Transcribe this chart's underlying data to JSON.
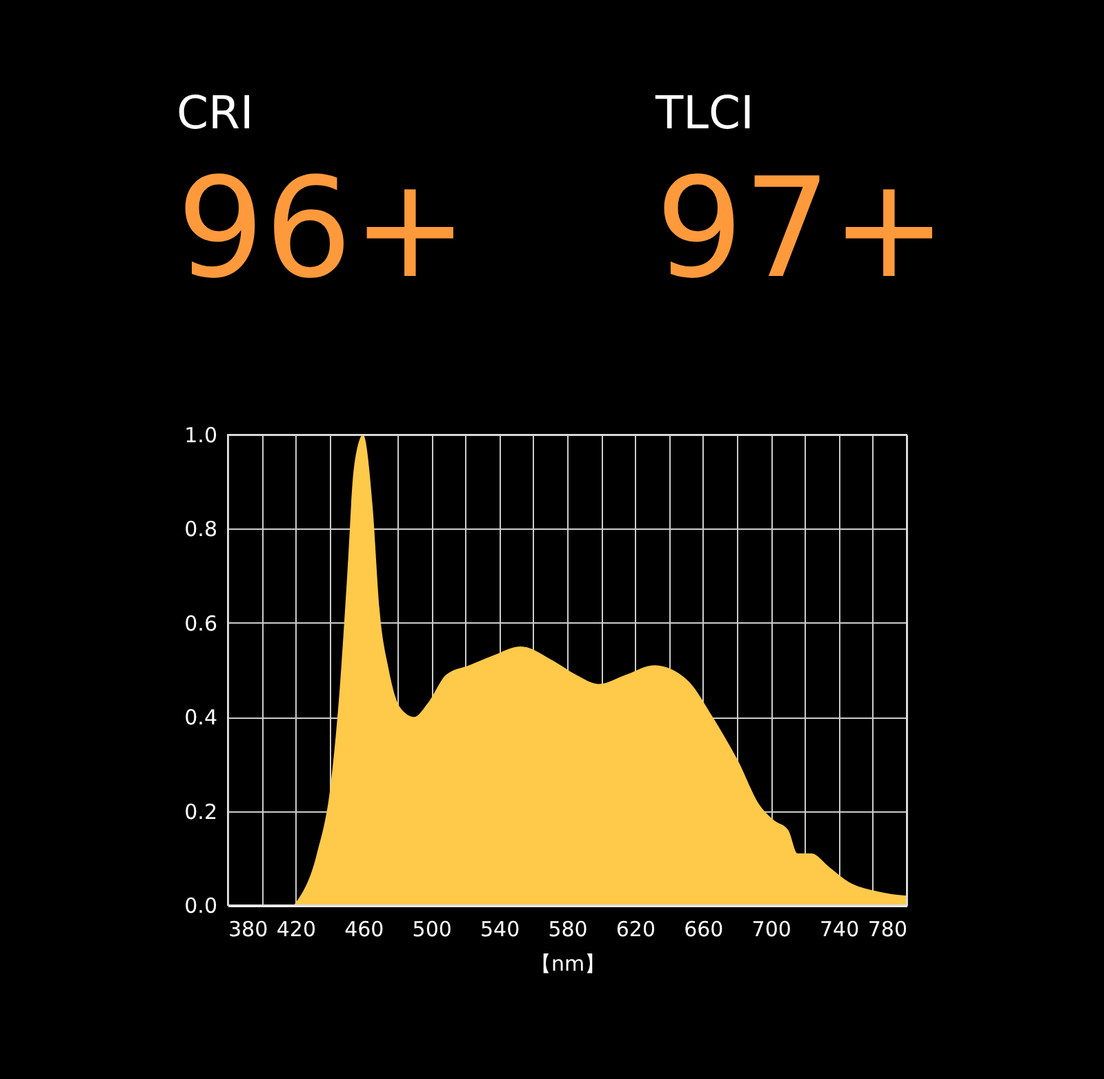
{
  "chart_data": {
    "type": "area",
    "xlabel": "【nm】",
    "annotations": [
      "CRI",
      "96+",
      "TLCI",
      "97+"
    ],
    "x": [
      419,
      432.6,
      440.8,
      446,
      450.4,
      454.4,
      459.8,
      465.3,
      469.4,
      474.9,
      481.6,
      489.8,
      498,
      508.8,
      522.4,
      536,
      552.4,
      571.4,
      585,
      598.6,
      614.9,
      631.3,
      642.2,
      653,
      664,
      680.2,
      693.9,
      702,
      710.2,
      715.7,
      723.8,
      734.7,
      745.6,
      761.9,
      780
    ],
    "series": [
      {
        "color": "#ffc94a",
        "values": [
          0,
          0.11,
          0.26,
          0.46,
          0.7,
          0.93,
          1.0,
          0.85,
          0.63,
          0.5,
          0.42,
          0.4,
          0.43,
          0.49,
          0.51,
          0.53,
          0.55,
          0.52,
          0.49,
          0.47,
          0.49,
          0.51,
          0.5,
          0.47,
          0.41,
          0.31,
          0.21,
          0.18,
          0.16,
          0.11,
          0.11,
          0.08,
          0.05,
          0.03,
          0.02
        ]
      }
    ],
    "xlim": [
      380,
      780
    ],
    "xticks": [
      380,
      {
        "value": 400,
        "label": null
      },
      420,
      {
        "value": 440,
        "label": null
      },
      460,
      {
        "value": 480,
        "label": null
      },
      500,
      {
        "value": 520,
        "label": null
      },
      540,
      {
        "value": 560,
        "label": null
      },
      580,
      {
        "value": 600,
        "label": null
      },
      620,
      {
        "value": 640,
        "label": null
      },
      660,
      {
        "value": 680,
        "label": null
      },
      700,
      {
        "value": 720,
        "label": null
      },
      740,
      {
        "value": 760,
        "label": null
      },
      780
    ],
    "ylim": [
      0,
      1
    ],
    "yticks": [
      {
        "value": 0,
        "label": "0.0"
      },
      {
        "value": 0.2,
        "label": "0.2"
      },
      {
        "value": 0.4,
        "label": "0.4"
      },
      {
        "value": 0.6,
        "label": "0.6"
      },
      {
        "value": 0.8,
        "label": "0.8"
      },
      {
        "value": 1,
        "label": "1.0"
      }
    ],
    "grid": true
  }
}
